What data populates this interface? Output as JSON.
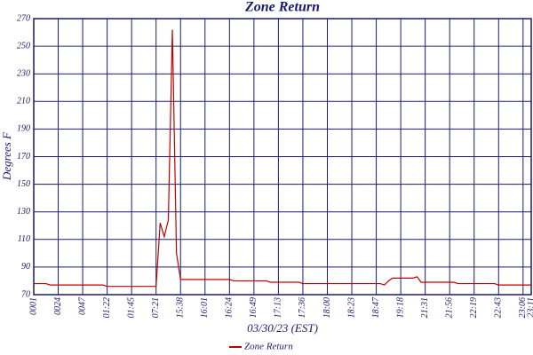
{
  "chart_data": {
    "type": "line",
    "title": "Zone Return",
    "y_label": "Degrees F",
    "x_label": "03/30/23 (EST)",
    "categories": [
      "0001",
      null,
      null,
      null,
      null,
      null,
      "0024",
      null,
      null,
      null,
      null,
      null,
      "0047",
      null,
      null,
      null,
      null,
      null,
      "01:22",
      null,
      null,
      null,
      null,
      null,
      "01:45",
      null,
      null,
      null,
      null,
      null,
      "07:21",
      null,
      null,
      null,
      null,
      null,
      "15:38",
      null,
      null,
      null,
      null,
      null,
      "16:01",
      null,
      null,
      null,
      null,
      null,
      "16:24",
      null,
      null,
      null,
      null,
      null,
      "16:49",
      null,
      null,
      null,
      null,
      null,
      "17:13",
      null,
      null,
      null,
      null,
      null,
      "17:36",
      null,
      null,
      null,
      null,
      null,
      "18:00",
      null,
      null,
      null,
      null,
      null,
      "18:23",
      null,
      null,
      null,
      null,
      null,
      "18:47",
      null,
      null,
      null,
      null,
      null,
      "19:18",
      null,
      null,
      null,
      null,
      null,
      "21:31",
      null,
      null,
      null,
      null,
      null,
      "21:56",
      null,
      null,
      null,
      null,
      null,
      "22:19",
      null,
      null,
      null,
      null,
      null,
      "22:43",
      null,
      null,
      null,
      null,
      null,
      "23:06",
      null,
      "23:11"
    ],
    "series": [
      {
        "name": "Zone Return",
        "color": "#c00000",
        "values": [
          78,
          78,
          78,
          78,
          77,
          77,
          77,
          77,
          77,
          77,
          77,
          77,
          77,
          77,
          77,
          77,
          77,
          77,
          76,
          76,
          76,
          76,
          76,
          76,
          76,
          76,
          76,
          76,
          76,
          76,
          76,
          122,
          112,
          124,
          262,
          100,
          81,
          81,
          81,
          81,
          81,
          81,
          81,
          81,
          81,
          81,
          81,
          81,
          81,
          80,
          80,
          80,
          80,
          80,
          80,
          80,
          80,
          80,
          79,
          79,
          79,
          79,
          79,
          79,
          79,
          79,
          78,
          78,
          78,
          78,
          78,
          78,
          78,
          78,
          78,
          78,
          78,
          78,
          78,
          78,
          78,
          78,
          78,
          78,
          78,
          78,
          77,
          80,
          82,
          82,
          82,
          82,
          82,
          82,
          83,
          79,
          79,
          79,
          79,
          79,
          79,
          79,
          79,
          79,
          78,
          78,
          78,
          78,
          78,
          78,
          78,
          78,
          78,
          78,
          77,
          77,
          77,
          77,
          77,
          77,
          77,
          77,
          77
        ]
      }
    ],
    "ylim": [
      70,
      270
    ],
    "yticks": [
      70,
      90,
      110,
      130,
      150,
      170,
      190,
      210,
      230,
      250,
      270
    ],
    "grid": true,
    "grid_color": "#1a1a6e",
    "legend": "bottom"
  }
}
